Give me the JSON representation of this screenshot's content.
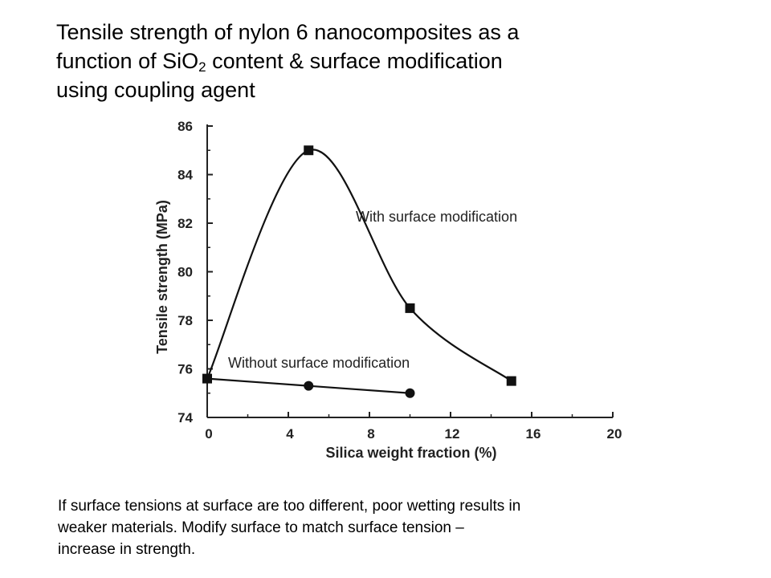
{
  "slide": {
    "title_line1": "Tensile strength of nylon 6 nanocomposites as a",
    "title_line2_pre": "function of SiO",
    "title_line2_sub": "2",
    "title_line2_post": " content & surface modification",
    "title_line3": "using coupling agent",
    "caption_line1": "If surface tensions at surface are too different, poor wetting results in",
    "caption_line2": "weaker materials.   Modify surface to match surface tension –",
    "caption_line3": "increase in strength."
  },
  "chart_data": {
    "type": "line",
    "xlabel": "Silica weight fraction (%)",
    "ylabel": "Tensile strength (MPa)",
    "xlim": [
      0,
      20
    ],
    "ylim": [
      74,
      86
    ],
    "xticks": [
      0,
      4,
      8,
      12,
      16,
      20
    ],
    "yticks": [
      74,
      76,
      78,
      80,
      82,
      84,
      86
    ],
    "grid": false,
    "legend": "none",
    "series": [
      {
        "name": "With surface modification",
        "marker": "square",
        "color": "#111111",
        "x": [
          0,
          5,
          10,
          15
        ],
        "y": [
          75.6,
          85.0,
          78.5,
          75.5
        ]
      },
      {
        "name": "Without surface modification",
        "marker": "circle",
        "color": "#111111",
        "x": [
          0,
          5,
          10
        ],
        "y": [
          75.6,
          75.3,
          75.0
        ]
      }
    ]
  }
}
